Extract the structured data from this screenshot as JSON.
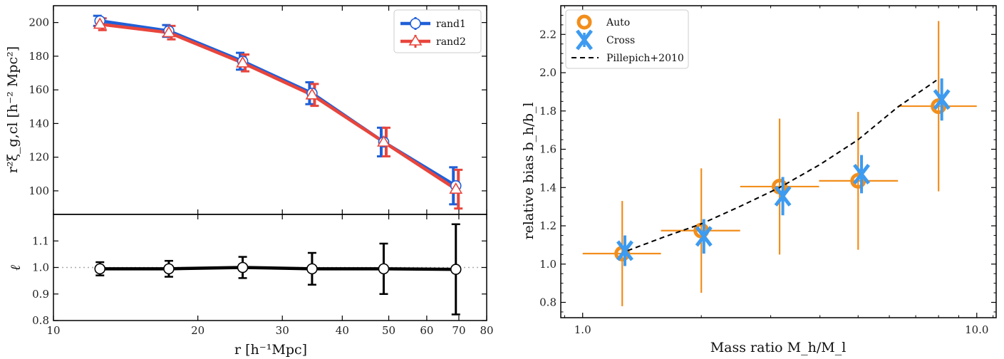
{
  "chart_data": [
    {
      "panel": "top-left",
      "type": "line",
      "x_scale": "log",
      "ylabel": "r²ξ_g,cl [h⁻² Mpc²]",
      "ylim": [
        86,
        210
      ],
      "yticks": [
        100,
        120,
        140,
        160,
        180,
        200
      ],
      "legend_placement": "top-right",
      "series": [
        {
          "name": "rand1",
          "marker": "circle",
          "color": "#1f5fd8",
          "x": [
            12.5,
            17.4,
            24.8,
            34.6,
            48.8,
            69.0
          ],
          "y": [
            201,
            195,
            177,
            158,
            129,
            103
          ],
          "err": [
            3,
            3.5,
            5,
            6.5,
            8.5,
            11
          ]
        },
        {
          "name": "rand2",
          "marker": "triangle",
          "color": "#e8453c",
          "x": [
            12.5,
            17.4,
            24.8,
            34.6,
            48.8,
            69.0
          ],
          "y": [
            199,
            194,
            176,
            157,
            129,
            101
          ],
          "err": [
            3.5,
            4,
            5,
            6.5,
            8.5,
            11.5
          ]
        }
      ]
    },
    {
      "panel": "bottom-left",
      "type": "line",
      "x_scale": "log",
      "xlabel": "r [h⁻¹Mpc]",
      "ylabel": "ℓ",
      "xlim": [
        10,
        80
      ],
      "xticks": [
        10,
        20,
        30,
        40,
        50,
        60,
        70,
        80
      ],
      "ylim": [
        0.8,
        1.2
      ],
      "yticks": [
        0.8,
        0.9,
        1.0,
        1.1
      ],
      "reference_line": 1.0,
      "series": [
        {
          "color": "#000000",
          "x": [
            12.5,
            17.4,
            24.8,
            34.6,
            48.8,
            69.0
          ],
          "y": [
            0.995,
            0.995,
            1.0,
            0.995,
            0.995,
            0.993
          ],
          "err": [
            0.025,
            0.03,
            0.04,
            0.06,
            0.095,
            0.17
          ]
        }
      ]
    },
    {
      "panel": "right",
      "type": "scatter",
      "x_scale": "log",
      "xlabel": "Mass ratio M_h/M_l",
      "ylabel": "relative bias b_h/b_l",
      "xlim": [
        0.88,
        11.2
      ],
      "xticks": [
        1.0,
        10.0
      ],
      "ylim": [
        0.72,
        2.35
      ],
      "yticks": [
        0.8,
        1.0,
        1.2,
        1.4,
        1.6,
        1.8,
        2.0,
        2.2
      ],
      "legend_placement": "top-left",
      "series": [
        {
          "name": "Auto",
          "marker": "ring",
          "color": "#f28e1c",
          "x": [
            1.26,
            2.0,
            3.16,
            5.0,
            8.0
          ],
          "y": [
            1.055,
            1.175,
            1.405,
            1.435,
            1.825
          ],
          "yerr": [
            0.275,
            0.325,
            0.355,
            0.36,
            0.445
          ],
          "xlo": [
            1.0,
            1.58,
            2.51,
            3.98,
            6.31
          ],
          "xhi": [
            1.58,
            2.51,
            3.98,
            6.31,
            10.0
          ]
        },
        {
          "name": "Cross",
          "marker": "x",
          "color": "#3d9bf0",
          "x": [
            1.28,
            2.03,
            3.22,
            5.1,
            8.15
          ],
          "y": [
            1.07,
            1.145,
            1.355,
            1.47,
            1.86
          ],
          "yerr": [
            0.08,
            0.09,
            0.1,
            0.1,
            0.11
          ]
        },
        {
          "name": "Pillepich+2010",
          "style": "dashed",
          "color": "#000000",
          "x": [
            1.3,
            1.6,
            2.0,
            2.5,
            3.16,
            4.0,
            5.0,
            6.3,
            7.9
          ],
          "y": [
            1.07,
            1.14,
            1.21,
            1.3,
            1.4,
            1.52,
            1.65,
            1.82,
            1.96
          ]
        }
      ]
    }
  ]
}
